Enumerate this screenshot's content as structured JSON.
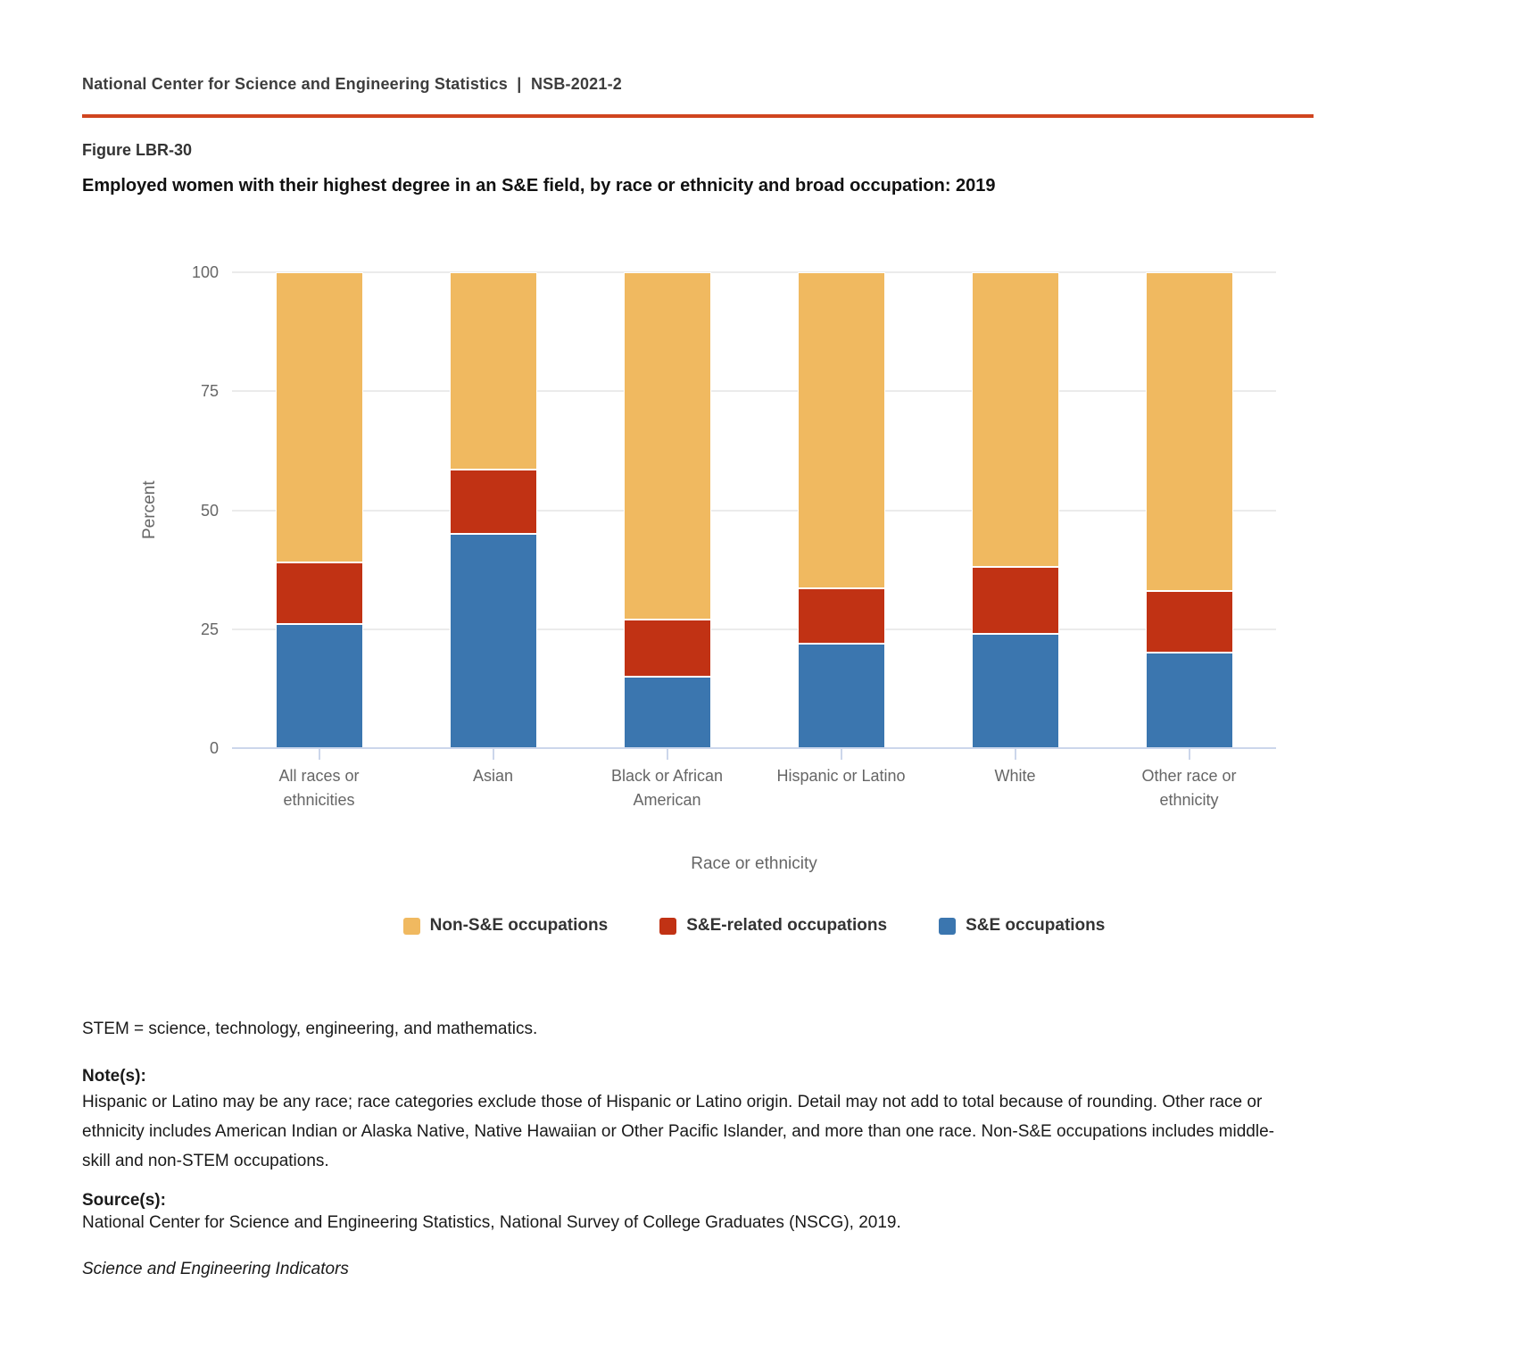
{
  "header": {
    "text": "National Center for Science and Engineering Statistics  |  NSB-2021-2"
  },
  "figure": {
    "label": "Figure LBR-30",
    "title": "Employed women with their highest degree in an S&E field, by race or ethnicity and broad occupation: 2019"
  },
  "chart_data": {
    "type": "bar",
    "stacked": true,
    "title": "Employed women with their highest degree in an S&E field, by race or ethnicity and broad occupation: 2019",
    "xlabel": "Race or ethnicity",
    "ylabel": "Percent",
    "ylim": [
      0,
      100
    ],
    "yticks": [
      0,
      25,
      50,
      75,
      100
    ],
    "grid": true,
    "legend_position": "bottom",
    "categories": [
      "All races or ethnicities",
      "Asian",
      "Black or African American",
      "Hispanic or Latino",
      "White",
      "Other race or ethnicity"
    ],
    "series": [
      {
        "name": "S&E occupations",
        "color": "#3b76af",
        "values": [
          26,
          45,
          15,
          22,
          24,
          20
        ]
      },
      {
        "name": "S&E-related occupations",
        "color": "#c13214",
        "values": [
          13,
          13.5,
          12,
          11.5,
          14,
          13
        ]
      },
      {
        "name": "Non-S&E occupations",
        "color": "#f0b960",
        "values": [
          61,
          41.5,
          73,
          66.5,
          62,
          67
        ]
      }
    ]
  },
  "legend": {
    "items": [
      {
        "label": "Non-S&E occupations",
        "color": "#f0b960"
      },
      {
        "label": "S&E-related occupations",
        "color": "#c13214"
      },
      {
        "label": "S&E occupations",
        "color": "#3b76af"
      }
    ]
  },
  "footer": {
    "stem_note": "STEM = science, technology, engineering, and mathematics.",
    "notes_label": "Note(s):",
    "notes_text": "Hispanic or Latino may be any race; race categories exclude those of Hispanic or Latino origin. Detail may not add to total because of rounding. Other race or ethnicity includes American Indian or Alaska Native, Native Hawaiian or Other Pacific Islander, and more than one race. Non-S&E occupations includes middle-skill and non-STEM occupations.",
    "sources_label": "Source(s):",
    "sources_text": "National Center for Science and Engineering Statistics, National Survey of College Graduates (NSCG), 2019.",
    "attribution": "Science and Engineering Indicators"
  },
  "colors": {
    "accent_rule": "#d0451f",
    "axis_line": "#ccd6eb",
    "gridline": "#ebebeb",
    "tick_label_text": "#666666",
    "legend_text": "#333333",
    "title_text": "#111111"
  }
}
